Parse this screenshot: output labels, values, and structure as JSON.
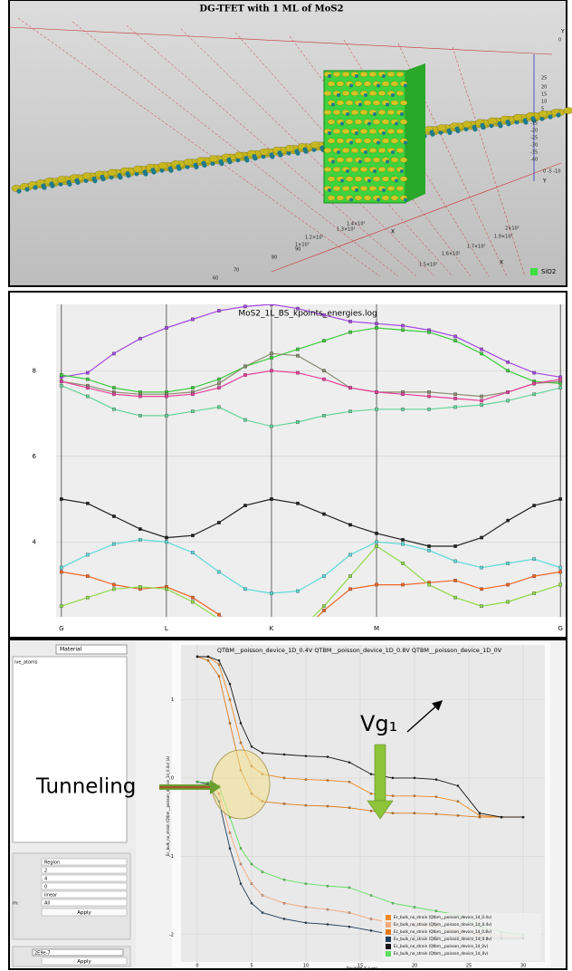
{
  "scene": {
    "title": "DG-TFET with 1 ML of MoS2",
    "axis_labels": [
      "X",
      "X",
      "Y",
      "Y"
    ],
    "tick_labels": [
      "60",
      "70",
      "80",
      "90",
      "1×10²",
      "1.2×10²",
      "1.3×10²",
      "1.4×10²",
      "1.5×10²",
      "1.6×10²",
      "1.7×10²",
      "1.9×10²",
      "2×10²",
      "25",
      "20",
      "15",
      "10",
      "5",
      "-15",
      "-20",
      "-25",
      "-30",
      "-35",
      "-40",
      "0",
      "0 -5 -10"
    ],
    "legend": "SiO2"
  },
  "sidebar": {
    "material": "Material",
    "list_item": "ive_atoms",
    "fields": [
      "Region",
      "2",
      "4",
      "0",
      "linear",
      "All"
    ],
    "field_label": "m:",
    "value": "2E9e-7",
    "buttons": [
      "Apply",
      "Apply"
    ]
  },
  "chart_data": [
    {
      "type": "line",
      "title": "MoS2_1L_BS_kpoints_energies.log",
      "x": [
        0,
        0.25,
        0.5,
        0.75,
        1,
        1.25,
        1.5,
        1.75,
        2,
        2.25,
        2.5,
        2.75,
        3,
        3.25,
        3.5,
        3.75,
        4,
        4.25,
        4.5,
        4.75
      ],
      "xlim": [
        -0.05,
        4.8
      ],
      "ylim": [
        2.25,
        9.55
      ],
      "xticks": [
        {
          "value": 0,
          "label": "G"
        },
        {
          "value": 1,
          "label": "L"
        },
        {
          "value": 2,
          "label": "K"
        },
        {
          "value": 3,
          "label": "M"
        },
        {
          "value": 4.75,
          "label": "G"
        }
      ],
      "yticks": [
        4,
        6,
        8
      ],
      "grid": true,
      "series": [
        {
          "color": "#a448e0",
          "values": [
            7.85,
            7.95,
            8.4,
            8.75,
            9.0,
            9.2,
            9.4,
            9.5,
            9.55,
            9.45,
            9.3,
            9.15,
            9.1,
            9.05,
            8.95,
            8.8,
            8.5,
            8.2,
            7.95,
            7.85
          ]
        },
        {
          "color": "#3ccc3c",
          "values": [
            7.9,
            7.8,
            7.6,
            7.5,
            7.5,
            7.6,
            7.8,
            8.1,
            8.3,
            8.5,
            8.7,
            8.9,
            9.0,
            8.95,
            8.9,
            8.7,
            8.4,
            8.0,
            7.75,
            7.7
          ]
        },
        {
          "color": "#8c8c70",
          "values": [
            7.75,
            7.65,
            7.5,
            7.45,
            7.45,
            7.5,
            7.7,
            8.1,
            8.4,
            8.35,
            8.0,
            7.6,
            7.5,
            7.5,
            7.5,
            7.45,
            7.4,
            7.5,
            7.7,
            7.75
          ]
        },
        {
          "color": "#e8409c",
          "values": [
            7.75,
            7.6,
            7.45,
            7.4,
            7.4,
            7.45,
            7.6,
            7.9,
            8.0,
            7.95,
            7.8,
            7.6,
            7.5,
            7.45,
            7.4,
            7.35,
            7.3,
            7.5,
            7.7,
            7.8
          ]
        },
        {
          "color": "#66d49a",
          "values": [
            7.65,
            7.4,
            7.1,
            6.95,
            6.95,
            7.05,
            7.15,
            6.85,
            6.7,
            6.8,
            6.95,
            7.05,
            7.1,
            7.1,
            7.1,
            7.15,
            7.2,
            7.3,
            7.45,
            7.6
          ]
        },
        {
          "color": "#202020",
          "values": [
            5.0,
            4.9,
            4.6,
            4.3,
            4.1,
            4.15,
            4.45,
            4.85,
            5.0,
            4.9,
            4.65,
            4.4,
            4.2,
            4.05,
            3.9,
            3.9,
            4.1,
            4.5,
            4.85,
            5.0
          ]
        },
        {
          "color": "#5ad8d8",
          "values": [
            3.4,
            3.7,
            3.95,
            4.05,
            4.0,
            3.75,
            3.3,
            2.9,
            2.8,
            2.85,
            3.2,
            3.7,
            4.0,
            3.95,
            3.8,
            3.55,
            3.4,
            3.5,
            3.6,
            3.4
          ]
        },
        {
          "color": "#f06424",
          "values": [
            3.3,
            3.2,
            3.0,
            2.9,
            2.95,
            2.7,
            2.3,
            1.8,
            1.6,
            1.8,
            2.4,
            2.9,
            3.0,
            3.0,
            3.05,
            3.1,
            2.9,
            3.0,
            3.2,
            3.3
          ]
        },
        {
          "color": "#8ed84a",
          "values": [
            2.5,
            2.7,
            2.9,
            2.95,
            2.9,
            2.6,
            2.2,
            1.8,
            1.6,
            1.9,
            2.5,
            3.2,
            3.9,
            3.5,
            3.0,
            2.7,
            2.5,
            2.6,
            2.8,
            3.0
          ]
        }
      ]
    },
    {
      "type": "line",
      "title": "QTBM__poisson_device_1D_0.4V QTBM__poisson_device_1D_0.8V QTBM__poisson_device_1D_0V",
      "x_label": "Position X (um)",
      "y_label": "Ec_bulk_no_strain (Qtbm__poisson_device_1d_0.4v) (a)",
      "x": [
        0,
        1,
        2,
        3,
        4,
        5,
        6,
        8,
        10,
        12,
        14,
        16,
        18,
        20,
        22,
        24,
        26,
        28,
        30
      ],
      "xlim": [
        -1.5,
        32
      ],
      "ylim": [
        -2.35,
        1.7
      ],
      "xticks": [
        0,
        5,
        10,
        15,
        20,
        25,
        30
      ],
      "yticks": [
        -2,
        -1,
        0,
        1
      ],
      "grid": true,
      "annotations": [
        "Tunneling",
        "Vg₁"
      ],
      "series": [
        {
          "name": "Ec_bulk_no_strain (Qtbm__poisson_device_1d_0.4v)",
          "color": "#f08a24",
          "values": [
            1.55,
            1.55,
            1.45,
            1.0,
            0.45,
            0.15,
            0.05,
            0.0,
            -0.02,
            -0.03,
            -0.05,
            -0.2,
            -0.23,
            -0.23,
            -0.24,
            -0.3,
            -0.48,
            -0.5,
            -0.5
          ]
        },
        {
          "name": "Ev_bulk_no_strain (Qtbm__poisson_device_1d_0.4v)",
          "color": "#f4a878",
          "values": [
            -0.05,
            -0.07,
            -0.2,
            -0.7,
            -1.1,
            -1.35,
            -1.5,
            -1.6,
            -1.65,
            -1.68,
            -1.72,
            -1.8,
            -1.85,
            -1.87,
            -1.9,
            -1.95,
            -2.0,
            -2.02,
            -2.03
          ]
        },
        {
          "name": "Ec_bulk_no_strain (Qtbm__poisson_device_1d_0.8v)",
          "color": "#e07c18",
          "values": [
            1.55,
            1.5,
            1.3,
            0.7,
            0.1,
            -0.2,
            -0.3,
            -0.33,
            -0.35,
            -0.36,
            -0.38,
            -0.42,
            -0.45,
            -0.45,
            -0.46,
            -0.48,
            -0.5,
            -0.5,
            -0.5
          ]
        },
        {
          "name": "Ev_bulk_no_strain (Qtbm__poisson_device_1d_0.8v)",
          "color": "#1e3c5c",
          "values": [
            -0.05,
            -0.08,
            -0.3,
            -0.9,
            -1.35,
            -1.6,
            -1.72,
            -1.8,
            -1.85,
            -1.87,
            -1.9,
            -1.95,
            -2.0,
            -2.02,
            -2.03,
            -2.03,
            -2.04,
            -2.05,
            -2.05
          ]
        },
        {
          "name": "Ec_bulk_no_strain (Qtbm__poisson_device_1d_0v)",
          "color": "#141414",
          "values": [
            1.55,
            1.55,
            1.5,
            1.2,
            0.7,
            0.4,
            0.32,
            0.3,
            0.28,
            0.27,
            0.2,
            0.05,
            0.0,
            0.0,
            -0.02,
            -0.1,
            -0.45,
            -0.5,
            -0.5
          ]
        },
        {
          "name": "Ev_bulk_no_strain (Qtbm__poisson_device_1d_0v)",
          "color": "#5ee05e",
          "values": [
            -0.05,
            -0.06,
            -0.1,
            -0.5,
            -0.9,
            -1.1,
            -1.2,
            -1.3,
            -1.35,
            -1.38,
            -1.4,
            -1.5,
            -1.6,
            -1.65,
            -1.7,
            -1.75,
            -1.9,
            -1.97,
            -2.0
          ]
        }
      ]
    }
  ]
}
